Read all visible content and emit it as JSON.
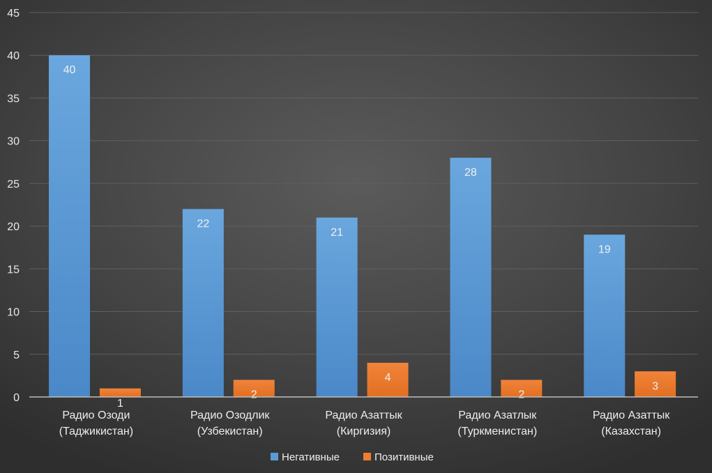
{
  "chart_data": {
    "type": "bar",
    "title": "",
    "xlabel": "",
    "ylabel": "",
    "ylim": [
      0,
      45
    ],
    "yticks": [
      0,
      5,
      10,
      15,
      20,
      25,
      30,
      35,
      40,
      45
    ],
    "grid": true,
    "legend_position": "bottom",
    "categories": [
      [
        "Радио Озоди",
        "(Таджикистан)"
      ],
      [
        "Радио Озодлик",
        "(Узбекистан)"
      ],
      [
        "Радио Азаттык",
        "(Киргизия)"
      ],
      [
        "Радио Азатлык",
        "(Туркменистан)"
      ],
      [
        "Радио Азаттык",
        "(Казахстан)"
      ]
    ],
    "series": [
      {
        "name": "Негативные",
        "color": "#5b9bd5",
        "values": [
          40,
          22,
          21,
          28,
          19
        ]
      },
      {
        "name": "Позитивные",
        "color": "#ed7d31",
        "values": [
          1,
          2,
          4,
          2,
          3
        ]
      }
    ]
  }
}
